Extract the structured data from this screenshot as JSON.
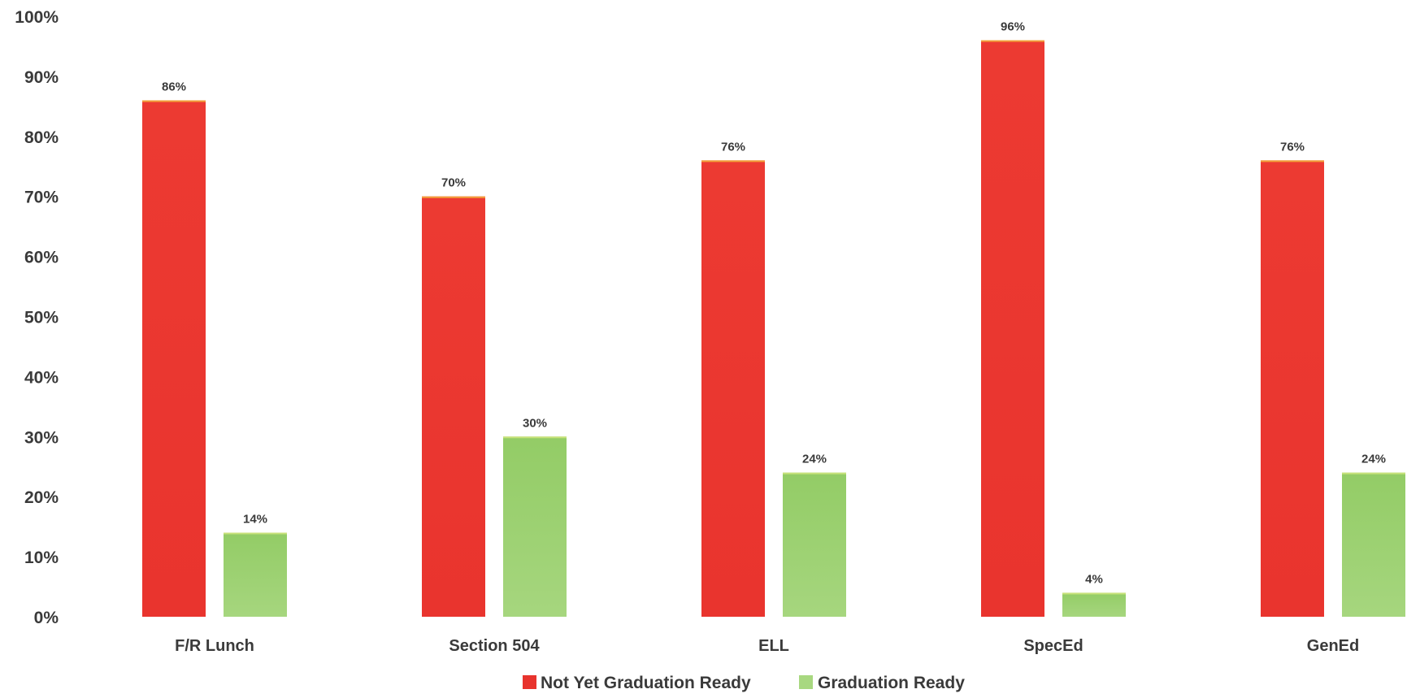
{
  "chart_data": {
    "type": "bar",
    "title": "",
    "xlabel": "",
    "ylabel": "",
    "ylim": [
      0,
      100
    ],
    "yticks": [
      0,
      10,
      20,
      30,
      40,
      50,
      60,
      70,
      80,
      90,
      100
    ],
    "ytick_labels": [
      "0%",
      "10%",
      "20%",
      "30%",
      "40%",
      "50%",
      "60%",
      "70%",
      "80%",
      "90%",
      "100%"
    ],
    "categories": [
      "F/R Lunch",
      "Section 504",
      "ELL",
      "SpecEd",
      "GenEd"
    ],
    "series": [
      {
        "name": "Not Yet Graduation Ready",
        "color": "#ee3b33",
        "values": [
          86,
          70,
          76,
          96,
          76
        ],
        "labels": [
          "86%",
          "70%",
          "76%",
          "96%",
          "76%"
        ]
      },
      {
        "name": "Graduation Ready",
        "color": "#8cc860",
        "values": [
          14,
          30,
          24,
          4,
          24
        ],
        "labels": [
          "14%",
          "30%",
          "24%",
          "4%",
          "24%"
        ]
      }
    ],
    "grid": false,
    "legend_position": "bottom-center"
  }
}
